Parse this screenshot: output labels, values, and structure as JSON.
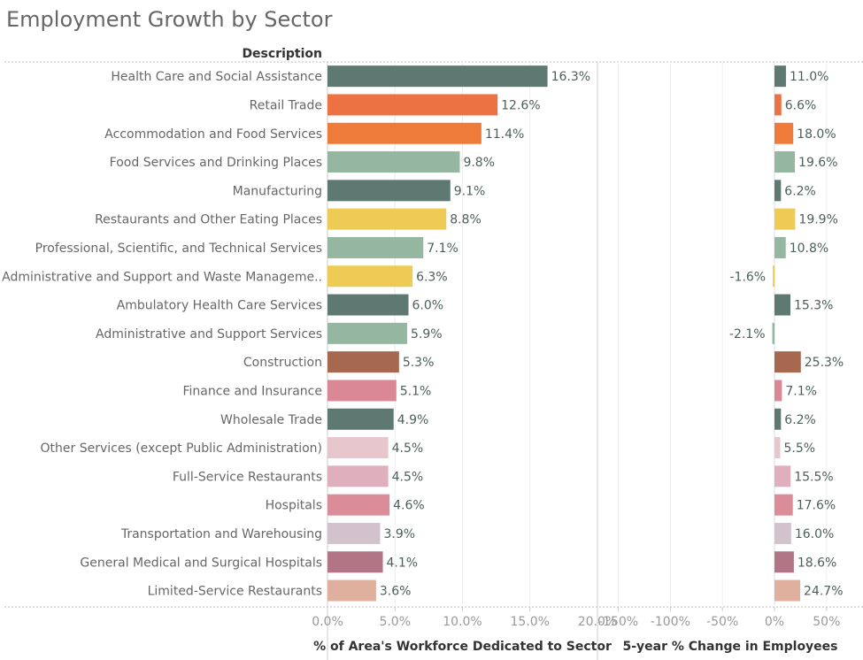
{
  "title": "Employment Growth by Sector",
  "chart_data": {
    "type": "bar",
    "title": "Employment Growth by Sector",
    "row_header": "Description",
    "categories": [
      "Health Care and Social Assistance",
      "Retail Trade",
      "Accommodation and Food Services",
      "Food Services and Drinking Places",
      "Manufacturing",
      "Restaurants and Other Eating Places",
      "Professional, Scientific, and Technical Services",
      "Administrative and Support and Waste Manageme..",
      "Ambulatory Health Care Services",
      "Administrative and Support Services",
      "Construction",
      "Finance and Insurance",
      "Wholesale Trade",
      "Other Services (except Public Administration)",
      "Full-Service Restaurants",
      "Hospitals",
      "Transportation and Warehousing",
      "General Medical and Surgical Hospitals",
      "Limited-Service Restaurants"
    ],
    "colors": [
      "#5e7872",
      "#ec7143",
      "#ee7b3a",
      "#95b7a1",
      "#5e7872",
      "#eecb54",
      "#95b7a1",
      "#eecb54",
      "#5e7872",
      "#95b7a1",
      "#a6684e",
      "#db8896",
      "#5e7872",
      "#e8c7cc",
      "#e0afbe",
      "#da8c98",
      "#d1c2cc",
      "#b27585",
      "#dfb09e"
    ],
    "panels": [
      {
        "xlabel": "% of Area's Workforce Dedicated to Sector",
        "xlim": [
          0,
          20
        ],
        "ticks": [
          0,
          5,
          10,
          15,
          20
        ],
        "tick_labels": [
          "0.0%",
          "5.0%",
          "10.0%",
          "15.0%",
          "20.0%"
        ],
        "values": [
          16.3,
          12.6,
          11.4,
          9.8,
          9.1,
          8.8,
          7.1,
          6.3,
          6.0,
          5.9,
          5.3,
          5.1,
          4.9,
          4.5,
          4.5,
          4.6,
          3.9,
          4.1,
          3.6
        ],
        "value_labels": [
          "16.3%",
          "12.6%",
          "11.4%",
          "9.8%",
          "9.1%",
          "8.8%",
          "7.1%",
          "6.3%",
          "6.0%",
          "5.9%",
          "5.3%",
          "5.1%",
          "4.9%",
          "4.5%",
          "4.5%",
          "4.6%",
          "3.9%",
          "4.1%",
          "3.6%"
        ]
      },
      {
        "xlabel": "5-year % Change in Employees",
        "xlim": [
          -170,
          85
        ],
        "ticks": [
          -150,
          -100,
          -50,
          0,
          50
        ],
        "tick_labels": [
          "-150%",
          "-100%",
          "-50%",
          "0%",
          "50%"
        ],
        "values": [
          11.0,
          6.6,
          18.0,
          19.6,
          6.2,
          19.9,
          10.8,
          -1.6,
          15.3,
          -2.1,
          25.3,
          7.1,
          6.2,
          5.5,
          15.5,
          17.6,
          16.0,
          18.6,
          24.7
        ],
        "value_labels": [
          "11.0%",
          "6.6%",
          "18.0%",
          "19.6%",
          "6.2%",
          "19.9%",
          "10.8%",
          "-1.6%",
          "15.3%",
          "-2.1%",
          "25.3%",
          "7.1%",
          "6.2%",
          "5.5%",
          "15.5%",
          "17.6%",
          "16.0%",
          "18.6%",
          "24.7%"
        ]
      }
    ],
    "grid": "vertical",
    "legend": "none"
  }
}
